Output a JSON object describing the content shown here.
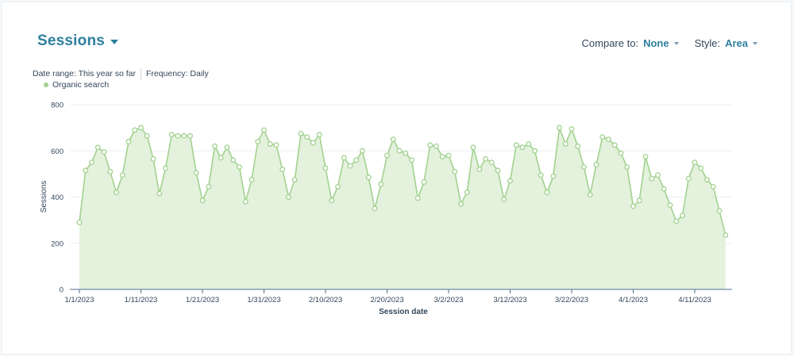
{
  "header": {
    "title": "Sessions",
    "compare_label": "Compare to:",
    "compare_value": "None",
    "style_label": "Style:",
    "style_value": "Area"
  },
  "filters": {
    "date_range": "Date range: This year so far",
    "frequency": "Frequency: Daily"
  },
  "colors": {
    "accent": "#2d7fa0",
    "series_line": "#a2d28f",
    "series_fill": "#e3f1dd",
    "point_fill": "#ffffff"
  },
  "chart_data": {
    "type": "area",
    "xlabel": "Session date",
    "ylabel": "Sessions",
    "ylim": [
      0,
      800
    ],
    "yticks": [
      0,
      200,
      400,
      600,
      800
    ],
    "grid": "horizontal",
    "legend_position": "top-left",
    "x_tick_labels": [
      "1/1/2023",
      "1/11/2023",
      "1/21/2023",
      "1/31/2023",
      "2/10/2023",
      "2/20/2023",
      "3/2/2023",
      "3/12/2023",
      "3/22/2023",
      "4/1/2023",
      "4/11/2023"
    ],
    "x_start": "2023-01-01",
    "series": [
      {
        "name": "Organic search",
        "values": [
          290,
          515,
          550,
          615,
          595,
          510,
          420,
          495,
          640,
          690,
          700,
          665,
          565,
          415,
          525,
          670,
          665,
          665,
          665,
          505,
          385,
          445,
          620,
          570,
          615,
          560,
          530,
          380,
          475,
          640,
          690,
          630,
          625,
          520,
          400,
          475,
          675,
          660,
          635,
          670,
          525,
          385,
          445,
          570,
          535,
          560,
          600,
          485,
          350,
          455,
          580,
          650,
          600,
          590,
          560,
          395,
          465,
          625,
          620,
          575,
          580,
          510,
          370,
          420,
          615,
          520,
          565,
          550,
          515,
          390,
          470,
          625,
          615,
          630,
          600,
          495,
          420,
          490,
          700,
          630,
          695,
          620,
          530,
          410,
          540,
          660,
          650,
          625,
          590,
          530,
          360,
          385,
          575,
          480,
          495,
          435,
          365,
          295,
          320,
          480,
          550,
          525,
          475,
          445,
          340,
          235
        ]
      }
    ]
  }
}
